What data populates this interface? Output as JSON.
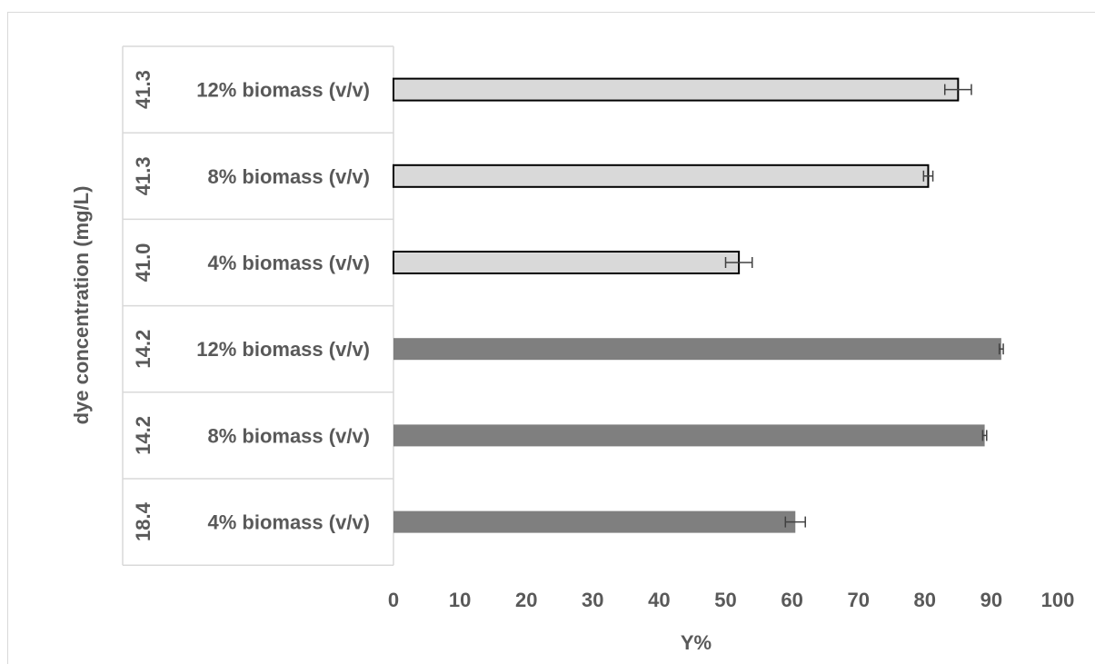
{
  "chart_data": {
    "type": "bar",
    "orientation": "horizontal",
    "title": "",
    "xlabel": "Y%",
    "ylabel": "dye concentration (mg/L)",
    "xlim": [
      0,
      100
    ],
    "xticks": [
      "0",
      "10",
      "20",
      "30",
      "40",
      "50",
      "60",
      "70",
      "80",
      "90",
      "100"
    ],
    "grid": false,
    "legend": "none",
    "rows": [
      {
        "concentration": "41.3",
        "category": "12% biomass (v/v)",
        "value": 85,
        "error": 2
      },
      {
        "concentration": "41.3",
        "category": "8% biomass (v/v)",
        "value": 80.5,
        "error": 0.7
      },
      {
        "concentration": "41.0",
        "category": "4% biomass (v/v)",
        "value": 52,
        "error": 2
      },
      {
        "concentration": "14.2",
        "category": "12% biomass (v/v)",
        "value": 91.5,
        "error": 0.3
      },
      {
        "concentration": "14.2",
        "category": "8% biomass (v/v)",
        "value": 89,
        "error": 0.3
      },
      {
        "concentration": "18.4",
        "category": "4% biomass (v/v)",
        "value": 60.5,
        "error": 1.5
      }
    ],
    "colors": {
      "light_bar": "#d9d9d9",
      "dark_bar": "#7f7f7f",
      "outline": "#000000",
      "text": "#595959",
      "axis": "#d9d9d9"
    }
  }
}
